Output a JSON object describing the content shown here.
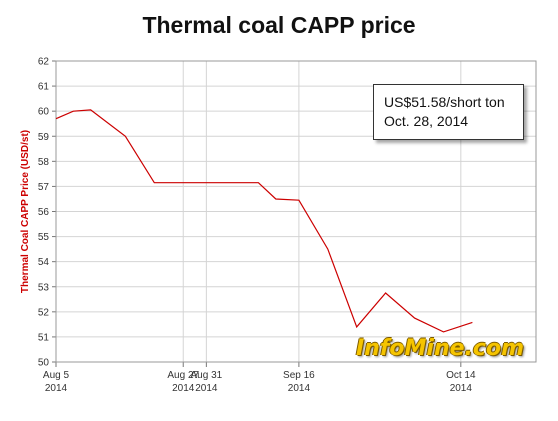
{
  "chart_data": {
    "type": "line",
    "title": "Thermal coal CAPP price",
    "ylabel": "Thermal Coal CAPP Price (USD/st)",
    "xlabel": "",
    "ylim": [
      50,
      62
    ],
    "y_ticks": [
      50,
      51,
      52,
      53,
      54,
      55,
      56,
      57,
      58,
      59,
      60,
      61,
      62
    ],
    "x_range_days": [
      0,
      83
    ],
    "x_ticks": [
      {
        "day": 0,
        "line1": "Aug 5",
        "line2": "2014"
      },
      {
        "day": 22,
        "line1": "Aug 27",
        "line2": "2014"
      },
      {
        "day": 26,
        "line1": "Aug 31",
        "line2": "2014"
      },
      {
        "day": 42,
        "line1": "Sep 16",
        "line2": "2014"
      },
      {
        "day": 70,
        "line1": "Oct 14",
        "line2": "2014"
      }
    ],
    "series": [
      {
        "name": "",
        "color": "#cc0000",
        "points": [
          {
            "x": "Aug 5, 2014",
            "y": 59.7
          },
          {
            "x": "Aug 8, 2014",
            "y": 60.0
          },
          {
            "x": "Aug 11, 2014",
            "y": 60.05
          },
          {
            "x": "Aug 17, 2014",
            "y": 59.0
          },
          {
            "x": "Aug 22, 2014",
            "y": 57.15
          },
          {
            "x": "Sep 9, 2014",
            "y": 57.15
          },
          {
            "x": "Sep 12, 2014",
            "y": 56.5
          },
          {
            "x": "Sep 16, 2014",
            "y": 56.45
          },
          {
            "x": "Sep 21, 2014",
            "y": 54.5
          },
          {
            "x": "Sep 26, 2014",
            "y": 51.4
          },
          {
            "x": "Oct 1, 2014",
            "y": 52.75
          },
          {
            "x": "Oct 6, 2014",
            "y": 51.75
          },
          {
            "x": "Oct 11, 2014",
            "y": 51.2
          },
          {
            "x": "Oct 16, 2014",
            "y": 51.58
          }
        ]
      }
    ],
    "grid": true,
    "annotation": {
      "line1": "US$51.58/short ton",
      "line2": "Oct. 28, 2014"
    }
  },
  "watermark": "InfoMine.com"
}
